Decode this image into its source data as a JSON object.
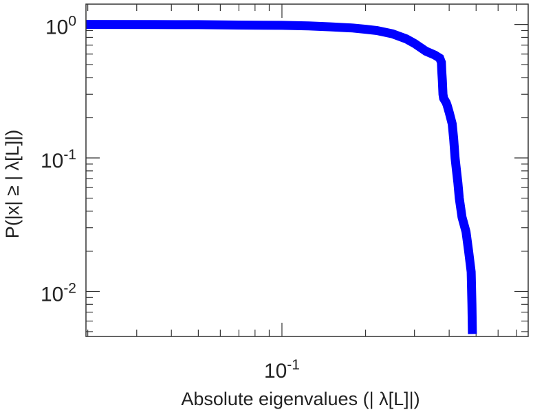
{
  "chart_data": {
    "type": "line",
    "title": "",
    "xlabel": "Absolute eigenvalues (|     λ[L]|)",
    "ylabel": "P(|x|  ≥ | λ[L]|)",
    "x_scale": "log",
    "y_scale": "log",
    "xlim": [
      0.0197,
      0.77
    ],
    "ylim": [
      0.0046,
      1.42
    ],
    "grid": false,
    "legend": "none",
    "x_tick_labels": [
      {
        "value": 0.1,
        "base": "10",
        "exp": "-1"
      }
    ],
    "y_tick_labels": [
      {
        "value": 1,
        "base": "10",
        "exp": "0"
      },
      {
        "value": 0.1,
        "base": "10",
        "exp": "-1"
      },
      {
        "value": 0.01,
        "base": "10",
        "exp": "-2"
      }
    ],
    "series": [
      {
        "color": "#0000ff",
        "x": [
          0.0197,
          0.035,
          0.05,
          0.07,
          0.1,
          0.125,
          0.15,
          0.18,
          0.2,
          0.22,
          0.25,
          0.28,
          0.3,
          0.33,
          0.355,
          0.37,
          0.375,
          0.376,
          0.378,
          0.38,
          0.382,
          0.39,
          0.393,
          0.4,
          0.41,
          0.415,
          0.42,
          0.425,
          0.43,
          0.435,
          0.445,
          0.46,
          0.47,
          0.48,
          0.483,
          0.485
        ],
        "y": [
          1.0,
          0.998,
          0.996,
          0.99,
          0.985,
          0.975,
          0.96,
          0.94,
          0.92,
          0.9,
          0.85,
          0.78,
          0.72,
          0.63,
          0.59,
          0.56,
          0.52,
          0.45,
          0.38,
          0.3,
          0.28,
          0.26,
          0.25,
          0.22,
          0.18,
          0.14,
          0.1,
          0.08,
          0.065,
          0.05,
          0.036,
          0.028,
          0.02,
          0.014,
          0.008,
          0.0048
        ]
      }
    ]
  }
}
